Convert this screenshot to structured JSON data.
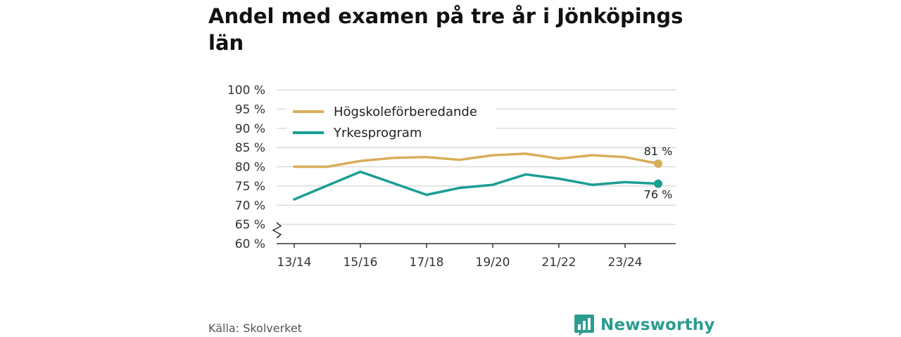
{
  "title": "Andel med examen på tre år i Jönköpings län",
  "source": "Källa: Skolverket",
  "brand": {
    "name": "Newsworthy",
    "logo_icon": "bar-chart-speech-bubble-icon",
    "color": "#2a9d8f"
  },
  "chart_data": {
    "type": "line",
    "title": "Andel med examen på tre år i Jönköpings län",
    "xlabel": "",
    "ylabel": "",
    "x": [
      "13/14",
      "14/15",
      "15/16",
      "16/17",
      "17/18",
      "18/19",
      "19/20",
      "20/21",
      "21/22",
      "22/23",
      "23/24",
      "24/25"
    ],
    "x_tick_labels": [
      "13/14",
      "15/16",
      "17/18",
      "19/20",
      "21/22",
      "23/24"
    ],
    "y_ticks": [
      60,
      65,
      70,
      75,
      80,
      85,
      90,
      95,
      100
    ],
    "y_tick_labels": [
      "60 %",
      "65 %",
      "70 %",
      "75 %",
      "80 %",
      "85 %",
      "90 %",
      "95 %",
      "100 %"
    ],
    "ylim": [
      60,
      100
    ],
    "axis_break": true,
    "grid": true,
    "legend_position": "top-left",
    "series": [
      {
        "name": "Högskoleförberedande",
        "color": "#d9ad5b",
        "values": [
          80,
          80,
          81.5,
          82.3,
          82.5,
          81.8,
          83,
          83.4,
          82.1,
          83,
          82.5,
          80.8
        ],
        "end_label": "81 %"
      },
      {
        "name": "Yrkesprogram",
        "color": "#1a9e93",
        "values": [
          71.5,
          75.1,
          78.7,
          75.7,
          72.7,
          74.5,
          75.3,
          78,
          76.9,
          75.3,
          76,
          75.6
        ],
        "end_label": "76 %"
      }
    ]
  }
}
